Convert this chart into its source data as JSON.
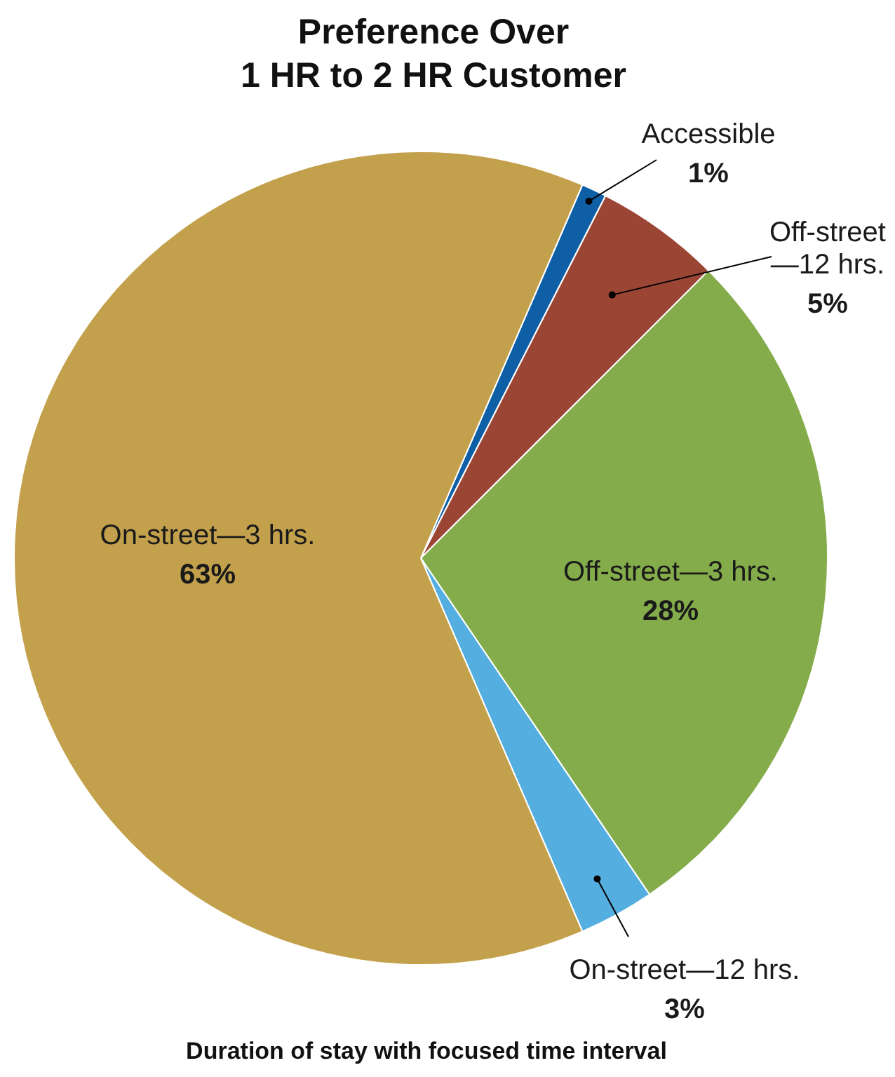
{
  "chart_data": {
    "type": "pie",
    "title": "Preference Over\n1 HR to 2 HR Customer",
    "categories": [
      "Accessible",
      "Off-street—12 hrs.",
      "Off-street—3 hrs.",
      "On-street—12 hrs.",
      "On-street—3 hrs."
    ],
    "values": [
      1,
      5,
      28,
      3,
      63
    ],
    "value_labels": [
      "1%",
      "5%",
      "28%",
      "3%",
      "63%"
    ],
    "colors": [
      "#0f5fa6",
      "#9b4535",
      "#84ac4a",
      "#55aee0",
      "#c3a14c"
    ],
    "annotations": [
      "Duration of stay with focused time interval"
    ]
  }
}
